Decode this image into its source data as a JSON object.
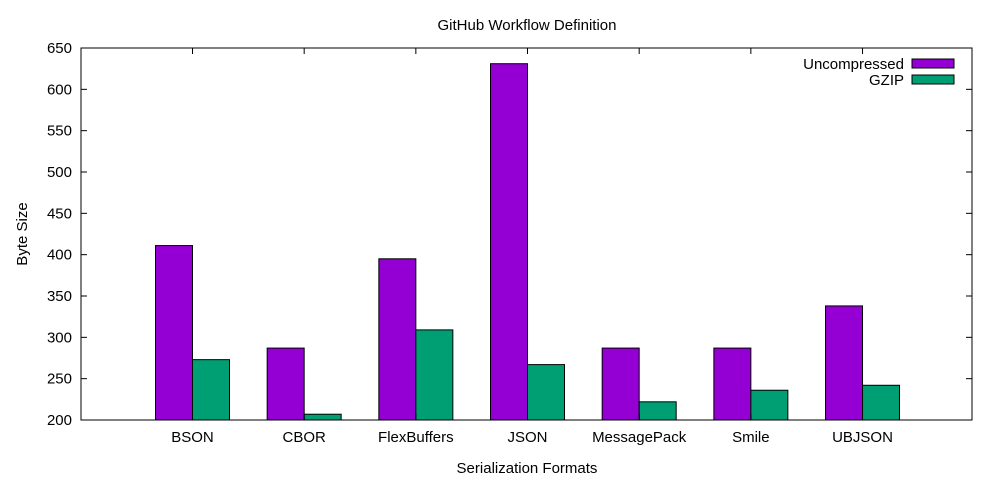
{
  "chart_data": {
    "type": "bar",
    "title": "GitHub Workflow Definition",
    "xlabel": "Serialization Formats",
    "ylabel": "Byte Size",
    "categories": [
      "BSON",
      "CBOR",
      "FlexBuffers",
      "JSON",
      "MessagePack",
      "Smile",
      "UBJSON"
    ],
    "series": [
      {
        "name": "Uncompressed",
        "color": "#9400d3",
        "values": [
          411,
          287,
          395,
          631,
          287,
          287,
          338
        ]
      },
      {
        "name": "GZIP",
        "color": "#009e73",
        "values": [
          273,
          207,
          309,
          267,
          222,
          236,
          242
        ]
      }
    ],
    "ylim": [
      200,
      650
    ],
    "yticks": [
      "200",
      "250",
      "300",
      "350",
      "400",
      "450",
      "500",
      "550",
      "600",
      "650"
    ],
    "legend_position": "top-right",
    "grid": false
  }
}
